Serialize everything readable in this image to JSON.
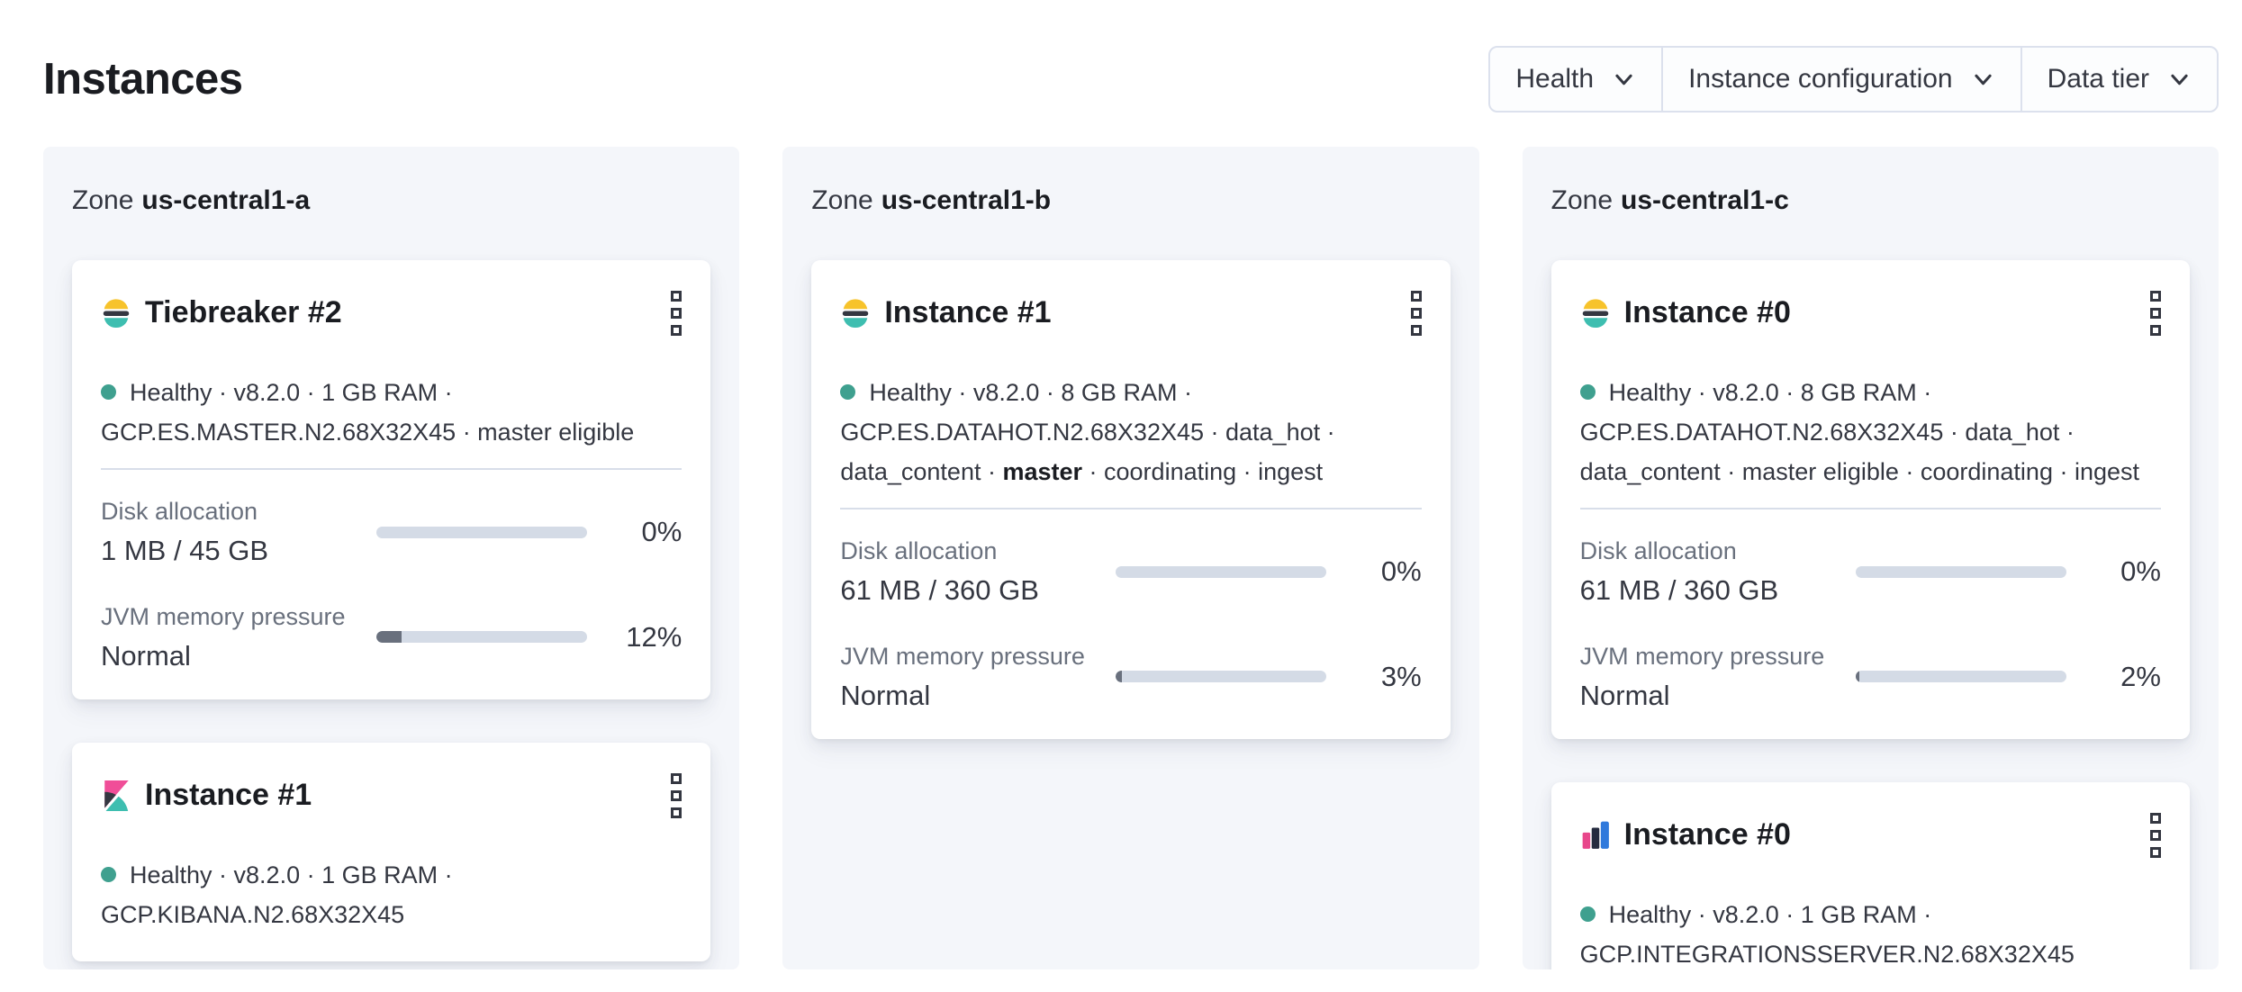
{
  "page": {
    "title": "Instances"
  },
  "filters": {
    "items": [
      {
        "label": "Health"
      },
      {
        "label": "Instance configuration"
      },
      {
        "label": "Data tier"
      }
    ]
  },
  "colors": {
    "health_dot": "#3fa08f",
    "progress_track": "#d4dbe6",
    "progress_fill": "#69707d",
    "panel_bg": "#f4f6fa",
    "es_logo_yellow": "#f7c32b",
    "es_logo_dark": "#343741",
    "es_logo_teal": "#3ebeb0",
    "kibana_pink": "#f04e98",
    "integrations_pink": "#e8478b",
    "integrations_navy": "#252b3f",
    "integrations_blue": "#2f79dc"
  },
  "zones": [
    {
      "label_prefix": "Zone",
      "name": "us-central1-a",
      "cards": [
        {
          "icon": "elasticsearch",
          "title": "Tiebreaker #2",
          "status": "Healthy",
          "meta_lines": [
            [
              {
                "text": "Healthy · v8.2.0 · 1 GB RAM ·"
              }
            ],
            [
              {
                "text": "GCP.ES.MASTER.N2.68X32X45 · master eligible"
              }
            ]
          ],
          "metrics": [
            {
              "label": "Disk allocation",
              "value": "1 MB / 45 GB",
              "percent": 0,
              "percent_label": "0%"
            },
            {
              "label": "JVM memory pressure",
              "value": "Normal",
              "percent": 12,
              "percent_label": "12%"
            }
          ]
        },
        {
          "icon": "kibana",
          "title": "Instance #1",
          "status": "Healthy",
          "meta_lines": [
            [
              {
                "text": "Healthy · v8.2.0 · 1 GB RAM ·"
              }
            ],
            [
              {
                "text": "GCP.KIBANA.N2.68X32X45"
              }
            ]
          ]
        }
      ]
    },
    {
      "label_prefix": "Zone",
      "name": "us-central1-b",
      "cards": [
        {
          "icon": "elasticsearch",
          "title": "Instance #1",
          "status": "Healthy",
          "meta_lines": [
            [
              {
                "text": "Healthy · v8.2.0 · 8 GB RAM ·"
              }
            ],
            [
              {
                "text": "GCP.ES.DATAHOT.N2.68X32X45 · data_hot ·"
              }
            ],
            [
              {
                "text": "data_content · "
              },
              {
                "text": "master",
                "bold": true
              },
              {
                "text": " · coordinating · ingest"
              }
            ]
          ],
          "metrics": [
            {
              "label": "Disk allocation",
              "value": "61 MB / 360 GB",
              "percent": 0,
              "percent_label": "0%"
            },
            {
              "label": "JVM memory pressure",
              "value": "Normal",
              "percent": 3,
              "percent_label": "3%"
            }
          ]
        }
      ]
    },
    {
      "label_prefix": "Zone",
      "name": "us-central1-c",
      "cards": [
        {
          "icon": "elasticsearch",
          "title": "Instance #0",
          "status": "Healthy",
          "meta_lines": [
            [
              {
                "text": "Healthy · v8.2.0 · 8 GB RAM ·"
              }
            ],
            [
              {
                "text": "GCP.ES.DATAHOT.N2.68X32X45 · data_hot ·"
              }
            ],
            [
              {
                "text": "data_content · master eligible · coordinating · ingest"
              }
            ]
          ],
          "metrics": [
            {
              "label": "Disk allocation",
              "value": "61 MB / 360 GB",
              "percent": 0,
              "percent_label": "0%"
            },
            {
              "label": "JVM memory pressure",
              "value": "Normal",
              "percent": 2,
              "percent_label": "2%"
            }
          ]
        },
        {
          "icon": "integrations-server",
          "title": "Instance #0",
          "status": "Healthy",
          "meta_lines": [
            [
              {
                "text": "Healthy · v8.2.0 · 1 GB RAM ·"
              }
            ],
            [
              {
                "text": "GCP.INTEGRATIONSSERVER.N2.68X32X45"
              }
            ]
          ]
        }
      ]
    }
  ]
}
